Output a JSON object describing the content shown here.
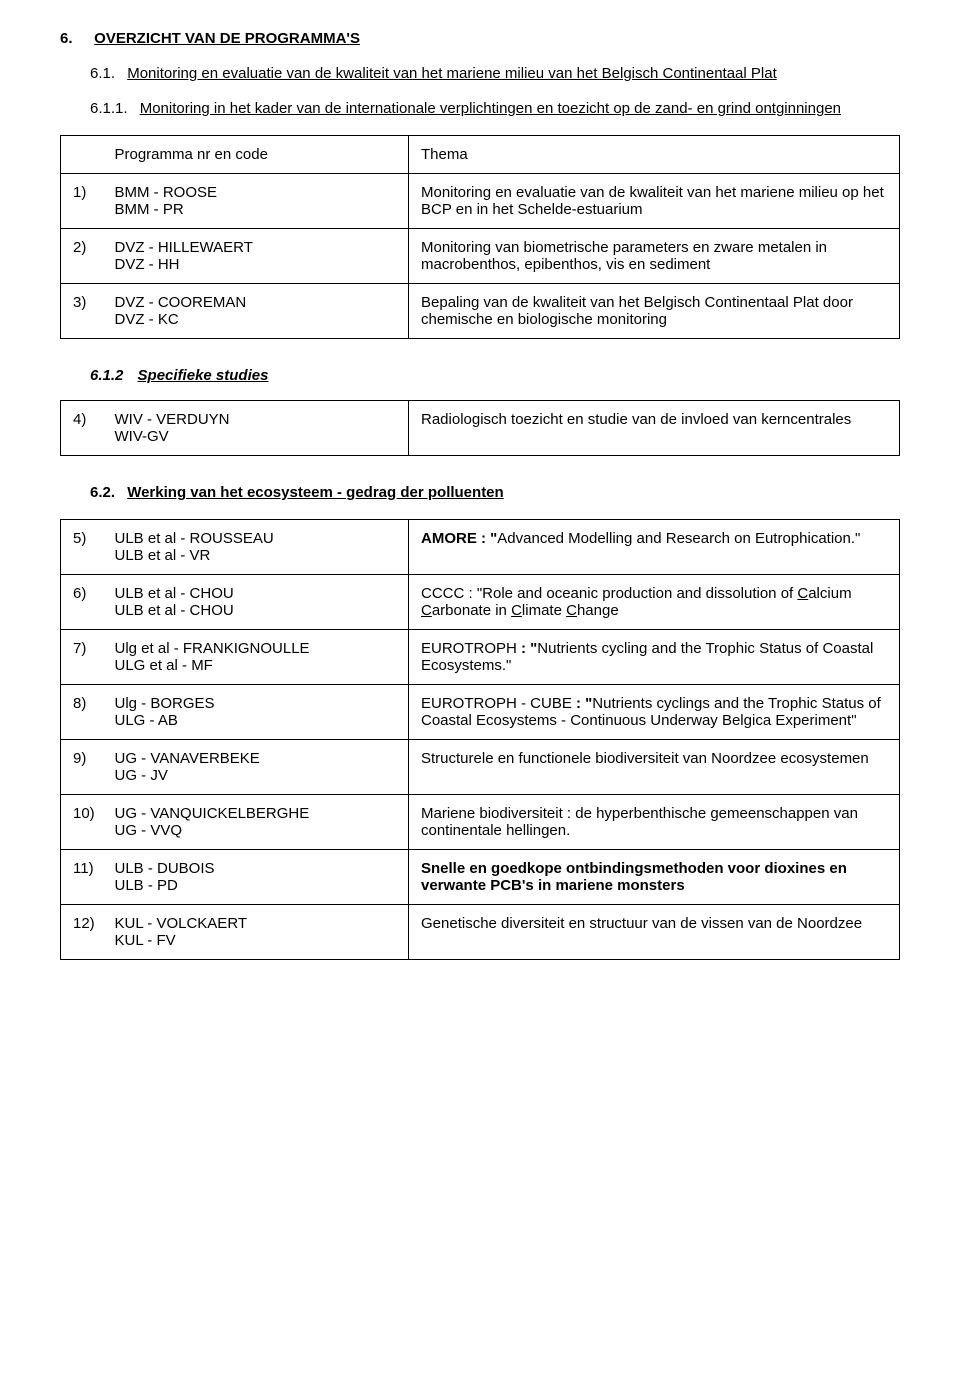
{
  "section6": {
    "num": "6.",
    "title": "OVERZICHT VAN DE PROGRAMMA'S"
  },
  "section61": {
    "num": "6.1.",
    "title": "Monitoring en evaluatie van de kwaliteit van het mariene milieu van het Belgisch Continentaal Plat"
  },
  "section611": {
    "num": "6.1.1.",
    "title": "Monitoring in het kader van de internationale verplichtingen en toezicht op de zand- en grind ontginningen"
  },
  "table1": {
    "header": {
      "left": "Programma nr en code",
      "right": "Thema"
    },
    "rows": [
      {
        "num": "1)",
        "ownerA": "BMM - ROOSE",
        "ownerB": "BMM - PR",
        "desc": "Monitoring en evaluatie van de kwaliteit van het mariene milieu op het BCP en in het Schelde-estuarium"
      },
      {
        "num": "2)",
        "ownerA": "DVZ - HILLEWAERT",
        "ownerB": "DVZ - HH",
        "desc": "Monitoring van biometrische parameters en zware metalen in macrobenthos, epibenthos, vis en sediment"
      },
      {
        "num": "3)",
        "ownerA": "DVZ - COOREMAN",
        "ownerB": "DVZ - KC",
        "desc": "Bepaling van de kwaliteit van het Belgisch Continentaal Plat door chemische en biologische monitoring"
      }
    ]
  },
  "section612": {
    "num": "6.1.2",
    "title": "Specifieke studies"
  },
  "table2": {
    "rows": [
      {
        "num": "4)",
        "ownerA": "WIV - VERDUYN",
        "ownerB": "WIV-GV",
        "desc": "Radiologisch toezicht en studie van de invloed van kerncentrales"
      }
    ]
  },
  "section62": {
    "num": "6.2.",
    "title": "Werking van het ecosysteem - gedrag der polluenten"
  },
  "table3": {
    "rows": [
      {
        "num": "5)",
        "ownerA": "ULB et al - ROUSSEAU",
        "ownerB": "ULB et al - VR"
      },
      {
        "num": "6)",
        "ownerA": "ULB et al - CHOU",
        "ownerB": "ULB et al - CHOU"
      },
      {
        "num": "7)",
        "ownerA": "Ulg et al - FRANKIGNOULLE",
        "ownerB": "ULG et al - MF"
      },
      {
        "num": "8)",
        "ownerA": "Ulg - BORGES",
        "ownerB": "ULG - AB"
      },
      {
        "num": "9)",
        "ownerA": "UG - VANAVERBEKE",
        "ownerB": "UG - JV"
      },
      {
        "num": "10)",
        "ownerA": "UG - VANQUICKELBERGHE",
        "ownerB": "UG - VVQ"
      },
      {
        "num": "11)",
        "ownerA": "ULB - DUBOIS",
        "ownerB": "ULB - PD"
      },
      {
        "num": "12)",
        "ownerA": "KUL - VOLCKAERT",
        "ownerB": "KUL - FV"
      }
    ],
    "descs": {
      "r5": {
        "pre": "AMORE : \"",
        "mid": "Advanced Modelling and Research on Eutrophication",
        "post": ".\""
      },
      "r6": {
        "pre": "CCCC : \"Role and oceanic production and dissolution of ",
        "c1": "C",
        "t1": "alcium ",
        "c2": "C",
        "t2": "arbonate in ",
        "c3": "C",
        "t3": "limate ",
        "c4": "C",
        "t4": "hange"
      },
      "r7": {
        "pre": "EUROTROPH ",
        "bold": ": \"",
        "mid": "Nutrients cycling and the Trophic Status of Coastal Ecosystems",
        "post": ".\""
      },
      "r8": {
        "pre": "EUROTROPH - CUBE ",
        "bold": ": \"",
        "mid": "Nutrients cyclings and the Trophic Status of Coastal Ecosystems - Continuous Underway Belgica Experiment\""
      },
      "r9": "Structurele en functionele biodiversiteit van Noordzee ecosystemen",
      "r10": "Mariene biodiversiteit : de hyperbenthische gemeenschappen van continentale hellingen.",
      "r11": "Snelle en goedkope ontbindingsmethoden voor dioxines en verwante PCB's in mariene monsters",
      "r12": "Genetische diversiteit en structuur van de vissen van de Noordzee"
    }
  }
}
